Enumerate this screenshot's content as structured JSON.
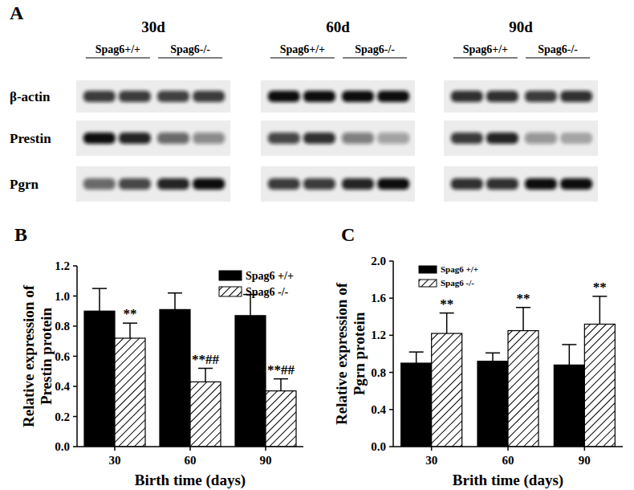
{
  "blot": {
    "label": "A",
    "groups": [
      {
        "title": "30d",
        "genotypes": [
          "Spag6+/+",
          "Spag6-/-"
        ]
      },
      {
        "title": "60d",
        "genotypes": [
          "Spag6+/+",
          "Spag6-/-"
        ]
      },
      {
        "title": "90d",
        "genotypes": [
          "Spag6+/+",
          "Spag6-/-"
        ]
      }
    ],
    "rows": [
      {
        "name": "β-actin",
        "intensity": [
          [
            0.8,
            0.8,
            0.78,
            0.8
          ],
          [
            1,
            1,
            1,
            1
          ],
          [
            0.85,
            0.85,
            0.8,
            0.85
          ]
        ]
      },
      {
        "name": "Prestin",
        "intensity": [
          [
            1,
            0.9,
            0.6,
            0.45
          ],
          [
            0.75,
            0.85,
            0.5,
            0.35
          ],
          [
            0.8,
            0.9,
            0.4,
            0.3
          ]
        ]
      },
      {
        "name": "Pgrn",
        "intensity": [
          [
            0.6,
            0.75,
            0.9,
            1
          ],
          [
            0.8,
            0.8,
            0.9,
            1
          ],
          [
            0.85,
            0.85,
            1,
            1
          ]
        ]
      }
    ]
  },
  "chart_data": [
    {
      "type": "bar",
      "panel_label": "B",
      "xlabel": "Birth time (days)",
      "ylabel": "Relative expression of\nPrestin protein",
      "categories": [
        "30",
        "60",
        "90"
      ],
      "series": [
        {
          "name": "Spag6 +/+",
          "color": "#000000",
          "values": [
            0.9,
            0.91,
            0.87
          ],
          "errors": [
            0.15,
            0.11,
            0.14
          ]
        },
        {
          "name": "Spag6 -/-",
          "color": "#000000",
          "values": [
            0.72,
            0.43,
            0.37
          ],
          "errors": [
            0.1,
            0.09,
            0.08
          ]
        }
      ],
      "annotations": [
        {
          "series": 1,
          "index": 0,
          "text": "**"
        },
        {
          "series": 1,
          "index": 1,
          "text": "**##"
        },
        {
          "series": 1,
          "index": 2,
          "text": "**##"
        }
      ],
      "ylim": [
        0,
        1.2
      ],
      "yticks": [
        {
          "value": 0,
          "label": "0.0"
        },
        0.2,
        0.4,
        0.6,
        0.8,
        {
          "value": 1,
          "label": "1.0"
        },
        1.2
      ],
      "legend": "top-right",
      "grid": false
    },
    {
      "type": "bar",
      "panel_label": "C",
      "xlabel": "Brith time (days)",
      "ylabel": "Relative expression of\nPgrn protein",
      "categories": [
        "30",
        "60",
        "90"
      ],
      "series": [
        {
          "name": "Spag6 +/+",
          "color": "#000000",
          "values": [
            0.9,
            0.92,
            0.88
          ],
          "errors": [
            0.12,
            0.09,
            0.22
          ]
        },
        {
          "name": "Spag6 -/-",
          "color": "#000000",
          "values": [
            1.22,
            1.25,
            1.32
          ],
          "errors": [
            0.22,
            0.25,
            0.3
          ]
        }
      ],
      "annotations": [
        {
          "series": 1,
          "index": 0,
          "text": "**"
        },
        {
          "series": 1,
          "index": 1,
          "text": "**"
        },
        {
          "series": 1,
          "index": 2,
          "text": "**"
        }
      ],
      "ylim": [
        0,
        2.0
      ],
      "yticks": [
        {
          "value": 0,
          "label": "0.0"
        },
        0.4,
        0.8,
        1.2,
        1.6,
        {
          "value": 2,
          "label": "2.0"
        }
      ],
      "legend": "top-left",
      "grid": false
    }
  ]
}
